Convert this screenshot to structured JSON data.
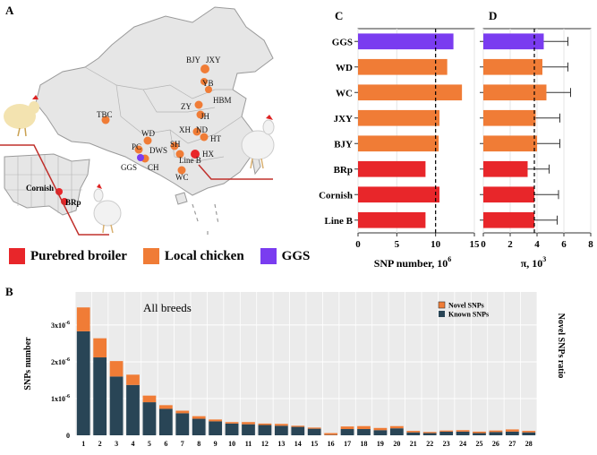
{
  "panels": {
    "a": "A",
    "b": "B",
    "c": "C",
    "d": "D"
  },
  "colors": {
    "broiler": "#e8262a",
    "local": "#f07c36",
    "ggs": "#7a3cf0",
    "novel": "#f07c36",
    "known": "#294556"
  },
  "map": {
    "labels": [
      "BJY",
      "JXY",
      "YB",
      "HBM",
      "ZY",
      "JH",
      "TBC",
      "XH",
      "ND",
      "HT",
      "WD",
      "SH",
      "PC",
      "DWS",
      "HX",
      "GGS",
      "CH",
      "Line B",
      "WC",
      "Cornish",
      "BRp"
    ]
  },
  "legend": {
    "items": [
      {
        "label": "Purebred broiler",
        "color": "#e8262a"
      },
      {
        "label": "Local chicken",
        "color": "#f07c36"
      },
      {
        "label": "GGS",
        "color": "#7a3cf0"
      }
    ]
  },
  "chart_data": [
    {
      "id": "C",
      "type": "bar",
      "orientation": "horizontal",
      "categories": [
        "GGS",
        "WD",
        "WC",
        "JXY",
        "BJY",
        "BRp",
        "Cornish",
        "Line B"
      ],
      "values": [
        12.3,
        11.5,
        13.4,
        10.5,
        10.4,
        8.7,
        10.5,
        8.7
      ],
      "bar_colors": [
        "#7a3cf0",
        "#f07c36",
        "#f07c36",
        "#f07c36",
        "#f07c36",
        "#e8262a",
        "#e8262a",
        "#e8262a"
      ],
      "xlabel": "SNP number, 10",
      "xlabel_sup": "6",
      "xlim": [
        0,
        15
      ],
      "xticks": [
        "0",
        "5",
        "10",
        "15"
      ],
      "reference_line": 10
    },
    {
      "id": "D",
      "type": "bar",
      "orientation": "horizontal",
      "categories": [
        "GGS",
        "WD",
        "WC",
        "JXY",
        "BJY",
        "BRp",
        "Cornish",
        "Line B"
      ],
      "values": [
        4.5,
        4.4,
        4.7,
        3.9,
        4.0,
        3.3,
        3.8,
        3.8
      ],
      "errors": [
        1.8,
        1.9,
        1.8,
        1.8,
        1.7,
        1.6,
        1.8,
        1.7
      ],
      "bar_colors": [
        "#7a3cf0",
        "#f07c36",
        "#f07c36",
        "#f07c36",
        "#f07c36",
        "#e8262a",
        "#e8262a",
        "#e8262a"
      ],
      "xlabel": "π, 10",
      "xlabel_sup": "3",
      "xlim": [
        0,
        8
      ],
      "xticks": [
        "0",
        "2",
        "4",
        "6",
        "8"
      ],
      "reference_line": 3.8
    },
    {
      "id": "B",
      "type": "bar",
      "stacked": true,
      "annotation": "All breeds",
      "categories": [
        "1",
        "2",
        "3",
        "4",
        "5",
        "6",
        "7",
        "8",
        "9",
        "10",
        "11",
        "12",
        "13",
        "14",
        "15",
        "16",
        "17",
        "18",
        "19",
        "20",
        "21",
        "22",
        "23",
        "24",
        "25",
        "26",
        "27",
        "28"
      ],
      "series": [
        {
          "name": "Known SNPs",
          "values": [
            2.83,
            2.12,
            1.6,
            1.37,
            0.9,
            0.72,
            0.6,
            0.45,
            0.38,
            0.32,
            0.3,
            0.28,
            0.26,
            0.23,
            0.18,
            0.01,
            0.17,
            0.17,
            0.14,
            0.19,
            0.08,
            0.06,
            0.1,
            0.1,
            0.06,
            0.09,
            0.1,
            0.08
          ]
        },
        {
          "name": "Novel SNPs",
          "values": [
            0.65,
            0.52,
            0.42,
            0.28,
            0.18,
            0.1,
            0.07,
            0.07,
            0.05,
            0.04,
            0.06,
            0.04,
            0.05,
            0.03,
            0.03,
            0.05,
            0.07,
            0.08,
            0.06,
            0.06,
            0.04,
            0.03,
            0.03,
            0.04,
            0.04,
            0.04,
            0.06,
            0.04
          ]
        }
      ],
      "ylabel": "SNPs number",
      "ylabel_right": "Novel SNPs ratio",
      "yticks": [
        {
          "value": 0,
          "label": "0"
        },
        {
          "value": 1,
          "label": "1x10",
          "sup": "-6"
        },
        {
          "value": 2,
          "label": "2x10",
          "sup": "-6"
        },
        {
          "value": 3,
          "label": "3x10",
          "sup": "-6"
        }
      ],
      "ylim": [
        0,
        3.9
      ],
      "legend": [
        "Novel SNPs",
        "Known SNPs"
      ]
    }
  ]
}
